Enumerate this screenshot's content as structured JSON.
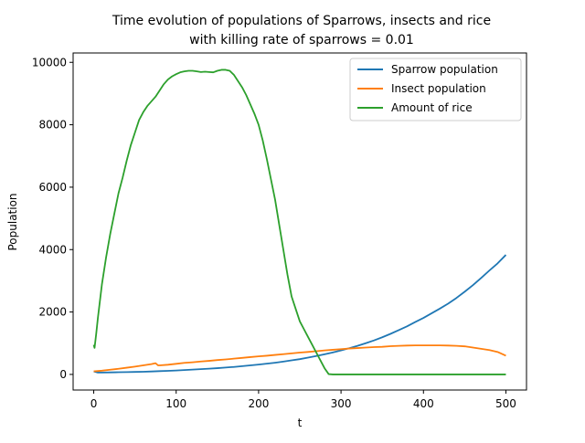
{
  "chart_data": {
    "type": "line",
    "title_line1": "Time evolution of populations of Sparrows, insects and rice",
    "title_line2": "with killing rate of sparrows = 0.01",
    "xlabel": "t",
    "ylabel": "Population",
    "xlim": [
      -25,
      525
    ],
    "ylim": [
      -500,
      10300
    ],
    "xticks": [
      0,
      100,
      200,
      300,
      400,
      500
    ],
    "yticks": [
      0,
      2000,
      4000,
      6000,
      8000,
      10000
    ],
    "grid": false,
    "legend_position": "upper right",
    "series": [
      {
        "name": "Sparrow population",
        "color": "#1f77b4",
        "x": [
          0,
          2,
          5,
          10,
          20,
          30,
          40,
          50,
          60,
          70,
          80,
          90,
          100,
          110,
          120,
          130,
          140,
          150,
          160,
          170,
          180,
          190,
          200,
          210,
          220,
          230,
          240,
          250,
          260,
          270,
          280,
          290,
          300,
          310,
          320,
          330,
          340,
          350,
          360,
          370,
          380,
          390,
          400,
          410,
          420,
          430,
          440,
          450,
          460,
          470,
          480,
          490,
          500
        ],
        "y": [
          100,
          80,
          60,
          60,
          65,
          70,
          75,
          80,
          85,
          95,
          105,
          115,
          125,
          140,
          155,
          170,
          185,
          200,
          220,
          240,
          265,
          290,
          315,
          345,
          375,
          410,
          450,
          490,
          540,
          590,
          645,
          705,
          770,
          840,
          915,
          1000,
          1090,
          1190,
          1300,
          1420,
          1540,
          1680,
          1810,
          1960,
          2110,
          2270,
          2450,
          2650,
          2860,
          3090,
          3330,
          3560,
          3830
        ]
      },
      {
        "name": "Insect population",
        "color": "#ff7f0e",
        "x": [
          0,
          10,
          20,
          30,
          40,
          50,
          60,
          70,
          75,
          78,
          80,
          90,
          100,
          110,
          120,
          130,
          140,
          150,
          160,
          170,
          180,
          190,
          200,
          210,
          220,
          230,
          240,
          250,
          260,
          270,
          280,
          290,
          300,
          310,
          320,
          330,
          340,
          350,
          360,
          370,
          380,
          390,
          400,
          410,
          420,
          430,
          440,
          450,
          460,
          470,
          480,
          490,
          500
        ],
        "y": [
          100,
          120,
          150,
          180,
          215,
          250,
          290,
          330,
          360,
          290,
          290,
          310,
          340,
          370,
          390,
          415,
          435,
          460,
          480,
          505,
          530,
          555,
          580,
          600,
          625,
          650,
          675,
          700,
          720,
          745,
          770,
          790,
          810,
          830,
          845,
          860,
          875,
          885,
          905,
          915,
          925,
          930,
          930,
          930,
          930,
          925,
          915,
          900,
          860,
          820,
          780,
          720,
          600
        ]
      },
      {
        "name": "Amount of rice",
        "color": "#2ca02c",
        "x": [
          0,
          1,
          3,
          5,
          10,
          15,
          20,
          25,
          30,
          35,
          40,
          45,
          50,
          55,
          60,
          65,
          70,
          75,
          80,
          85,
          90,
          95,
          100,
          105,
          110,
          115,
          120,
          125,
          130,
          135,
          140,
          145,
          150,
          155,
          160,
          165,
          170,
          175,
          180,
          185,
          190,
          195,
          200,
          205,
          210,
          215,
          220,
          225,
          230,
          235,
          240,
          245,
          250,
          255,
          260,
          265,
          270,
          275,
          280,
          285,
          290,
          300,
          350,
          400,
          450,
          500
        ],
        "y": [
          950,
          850,
          1300,
          1800,
          2900,
          3750,
          4500,
          5150,
          5800,
          6300,
          6850,
          7350,
          7750,
          8150,
          8400,
          8600,
          8750,
          8900,
          9100,
          9300,
          9450,
          9550,
          9620,
          9680,
          9710,
          9730,
          9730,
          9710,
          9690,
          9700,
          9690,
          9680,
          9730,
          9760,
          9760,
          9730,
          9600,
          9400,
          9200,
          8950,
          8650,
          8350,
          8000,
          7500,
          6900,
          6250,
          5600,
          4800,
          4000,
          3200,
          2500,
          2100,
          1700,
          1450,
          1200,
          950,
          700,
          450,
          200,
          10,
          0,
          0,
          0,
          0,
          0,
          0
        ]
      }
    ]
  }
}
